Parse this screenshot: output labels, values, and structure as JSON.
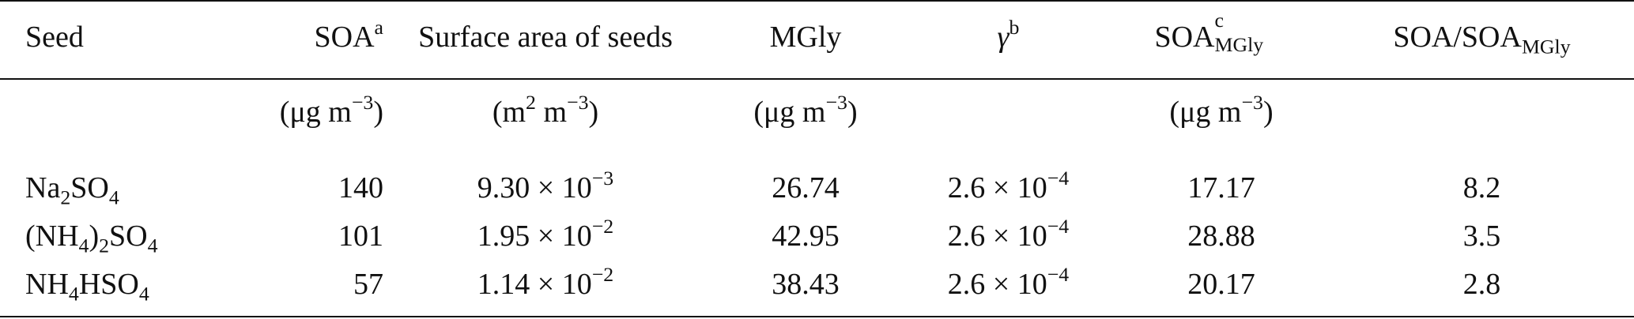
{
  "headers": {
    "seed": "Seed",
    "soa": "SOA",
    "soa_sup": "a",
    "surface_area": "Surface area of seeds",
    "mgly": "MGly",
    "gamma": "γ",
    "gamma_sup": "b",
    "soa_mgly": "SOA",
    "soa_mgly_sup": "c",
    "soa_mgly_sub": "MGly",
    "ratio_prefix": "SOA/SOA",
    "ratio_sub": "MGly"
  },
  "units": {
    "soa": "(μg m",
    "soa_exp": "−3",
    "soa_close": ")",
    "surface_prefix": "(m",
    "surface_exp1": "2",
    "surface_mid": " m",
    "surface_exp2": "−3",
    "surface_close": ")",
    "mgly": "(μg m",
    "mgly_exp": "−3",
    "mgly_close": ")",
    "soa_mgly": "(μg m",
    "soa_mgly_exp": "−3",
    "soa_mgly_close": ")"
  },
  "rows": [
    {
      "seed_parts": [
        {
          "t": "Na"
        },
        {
          "sub": "2"
        },
        {
          "t": "SO"
        },
        {
          "sub": "4"
        }
      ],
      "soa": "140",
      "surface_mantissa": "9.30 × 10",
      "surface_exp": "−3",
      "mgly": "26.74",
      "gamma_mantissa": "2.6 × 10",
      "gamma_exp": "−4",
      "soa_mgly": "17.17",
      "ratio": "8.2"
    },
    {
      "seed_parts": [
        {
          "t": "(NH"
        },
        {
          "sub": "4"
        },
        {
          "t": ")"
        },
        {
          "sub": "2"
        },
        {
          "t": "SO"
        },
        {
          "sub": "4"
        }
      ],
      "soa": "101",
      "surface_mantissa": "1.95 × 10",
      "surface_exp": "−2",
      "mgly": "42.95",
      "gamma_mantissa": "2.6 × 10",
      "gamma_exp": "−4",
      "soa_mgly": "28.88",
      "ratio": "3.5"
    },
    {
      "seed_parts": [
        {
          "t": "NH"
        },
        {
          "sub": "4"
        },
        {
          "t": "HSO"
        },
        {
          "sub": "4"
        }
      ],
      "soa": "57",
      "surface_mantissa": "1.14 × 10",
      "surface_exp": "−2",
      "mgly": "38.43",
      "gamma_mantissa": "2.6 × 10",
      "gamma_exp": "−4",
      "soa_mgly": "20.17",
      "ratio": "2.8"
    }
  ]
}
